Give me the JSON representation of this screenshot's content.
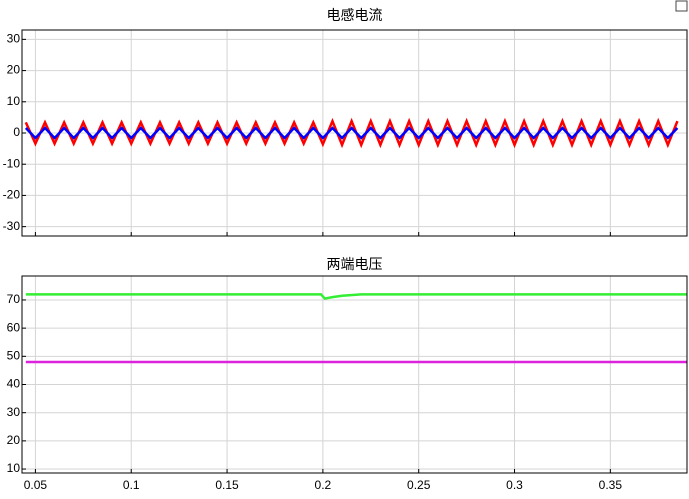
{
  "chart_data": [
    {
      "type": "line",
      "title": "电感电流",
      "x": [
        0.045,
        0.05,
        0.055,
        0.06,
        0.065,
        0.07,
        0.075,
        0.08,
        0.085,
        0.09,
        0.095,
        0.1,
        0.105,
        0.11,
        0.115,
        0.12,
        0.125,
        0.13,
        0.135,
        0.14,
        0.145,
        0.15,
        0.155,
        0.16,
        0.165,
        0.17,
        0.175,
        0.18,
        0.185,
        0.19,
        0.195,
        0.2,
        0.205,
        0.21,
        0.215,
        0.22,
        0.225,
        0.23,
        0.235,
        0.24,
        0.245,
        0.25,
        0.255,
        0.26,
        0.265,
        0.27,
        0.275,
        0.28,
        0.285,
        0.29,
        0.295,
        0.3,
        0.305,
        0.31,
        0.315,
        0.32,
        0.325,
        0.33,
        0.335,
        0.34,
        0.345,
        0.35,
        0.355,
        0.36,
        0.365,
        0.37,
        0.375,
        0.38,
        0.385
      ],
      "series": [
        {
          "color": "#ff0000",
          "values": [
            3.4,
            -3.4,
            3.4,
            -3.4,
            3.4,
            -3.4,
            3.4,
            -3.4,
            3.4,
            -3.4,
            3.4,
            -3.4,
            3.4,
            -3.4,
            3.4,
            -3.4,
            3.4,
            -3.4,
            3.4,
            -3.4,
            3.4,
            -3.4,
            3.4,
            -3.4,
            3.4,
            -3.4,
            3.4,
            -3.4,
            3.4,
            -3.4,
            3.4,
            -3.6,
            3.8,
            -3.8,
            3.8,
            -3.8,
            3.8,
            -3.8,
            3.8,
            -3.8,
            3.8,
            -3.8,
            3.8,
            -3.8,
            3.8,
            -3.8,
            3.8,
            -3.8,
            3.8,
            -3.8,
            3.8,
            -3.8,
            3.8,
            -3.8,
            3.8,
            -3.8,
            3.8,
            -3.8,
            3.8,
            -3.8,
            3.8,
            -3.8,
            3.8,
            -3.8,
            3.8,
            -3.8,
            3.8,
            -3.8,
            3.8
          ]
        },
        {
          "color": "#0000ff",
          "values": [
            1.6,
            -1.6,
            1.6,
            -1.6,
            1.6,
            -1.6,
            1.6,
            -1.6,
            1.6,
            -1.6,
            1.6,
            -1.6,
            1.6,
            -1.6,
            1.6,
            -1.6,
            1.6,
            -1.6,
            1.6,
            -1.6,
            1.6,
            -1.6,
            1.6,
            -1.6,
            1.6,
            -1.6,
            1.6,
            -1.6,
            1.6,
            -1.6,
            1.6,
            -1.6,
            1.6,
            -1.6,
            1.6,
            -1.6,
            1.6,
            -1.6,
            1.6,
            -1.6,
            1.6,
            -1.6,
            1.6,
            -1.6,
            1.6,
            -1.6,
            1.6,
            -1.6,
            1.6,
            -1.6,
            1.6,
            -1.6,
            1.6,
            -1.6,
            1.6,
            -1.6,
            1.6,
            -1.6,
            1.6,
            -1.6,
            1.6,
            -1.6,
            1.6,
            -1.6,
            1.6,
            -1.6,
            1.6,
            -1.6,
            1.6
          ]
        }
      ],
      "xlim": [
        0.043,
        0.39
      ],
      "xticks": [
        0.05,
        0.1,
        0.15,
        0.2,
        0.25,
        0.3,
        0.35
      ],
      "ylim": [
        -33,
        33
      ],
      "yticks": [
        30,
        20,
        10,
        0,
        -10,
        -20,
        -30
      ],
      "grid": true
    },
    {
      "type": "line",
      "title": "两端电压",
      "x": [
        0.045,
        0.1,
        0.15,
        0.199,
        0.201,
        0.205,
        0.21,
        0.22,
        0.25,
        0.3,
        0.35,
        0.39
      ],
      "series": [
        {
          "color": "#33ee33",
          "values": [
            72,
            72,
            72,
            72,
            70.5,
            71,
            71.5,
            72,
            72,
            72,
            72,
            72
          ]
        },
        {
          "color": "#dd22dd",
          "values": [
            48,
            48,
            48,
            48,
            48,
            48,
            48,
            48,
            48,
            48,
            48,
            48
          ]
        }
      ],
      "xlim": [
        0.043,
        0.39
      ],
      "xticks": [
        0.05,
        0.1,
        0.15,
        0.2,
        0.25,
        0.3,
        0.35
      ],
      "ylim": [
        8.6,
        78.5
      ],
      "yticks": [
        70,
        60,
        50,
        40,
        30,
        20,
        10
      ],
      "grid": true
    }
  ]
}
